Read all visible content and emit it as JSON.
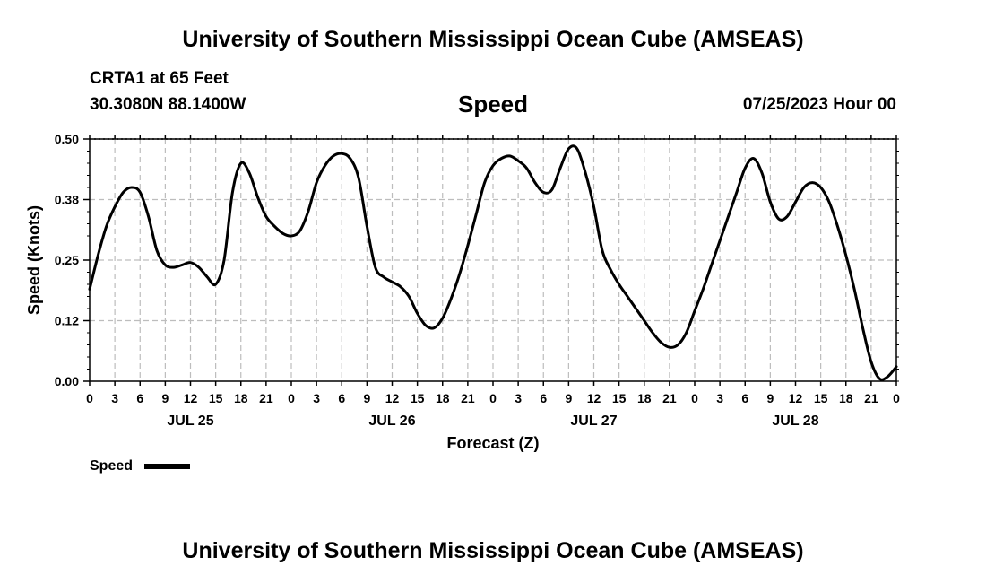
{
  "header": {
    "title": "University of Southern Mississippi Ocean Cube (AMSEAS)",
    "station": "CRTA1 at 65 Feet",
    "coords": "30.3080N  88.1400W",
    "variable": "Speed",
    "date": "07/25/2023 Hour 00"
  },
  "footer": {
    "title": "University of Southern Mississippi Ocean Cube (AMSEAS)"
  },
  "legend": {
    "label": "Speed"
  },
  "colors": {
    "line": "#000000",
    "grid": "#bdbdbd",
    "background": "#ffffff"
  },
  "chart_data": {
    "type": "line",
    "title": "Speed",
    "xlabel": "Forecast (Z)",
    "ylabel": "Speed (Knots)",
    "xlim": [
      0,
      96
    ],
    "ylim": [
      0,
      0.5
    ],
    "grid": true,
    "legend_position": "bottom-left",
    "y_ticks": [
      {
        "value": 0,
        "label": "0.00"
      },
      {
        "value": 0.125,
        "label": "0.12"
      },
      {
        "value": 0.25,
        "label": "0.25"
      },
      {
        "value": 0.375,
        "label": "0.38"
      },
      {
        "value": 0.5,
        "label": "0.50"
      }
    ],
    "x_ticks": [
      {
        "value": 0,
        "label": "0"
      },
      {
        "value": 3,
        "label": "3"
      },
      {
        "value": 6,
        "label": "6"
      },
      {
        "value": 9,
        "label": "9"
      },
      {
        "value": 12,
        "label": "12"
      },
      {
        "value": 15,
        "label": "15"
      },
      {
        "value": 18,
        "label": "18"
      },
      {
        "value": 21,
        "label": "21"
      },
      {
        "value": 24,
        "label": "0"
      },
      {
        "value": 27,
        "label": "3"
      },
      {
        "value": 30,
        "label": "6"
      },
      {
        "value": 33,
        "label": "9"
      },
      {
        "value": 36,
        "label": "12"
      },
      {
        "value": 39,
        "label": "15"
      },
      {
        "value": 42,
        "label": "18"
      },
      {
        "value": 45,
        "label": "21"
      },
      {
        "value": 48,
        "label": "0"
      },
      {
        "value": 51,
        "label": "3"
      },
      {
        "value": 54,
        "label": "6"
      },
      {
        "value": 57,
        "label": "9"
      },
      {
        "value": 60,
        "label": "12"
      },
      {
        "value": 63,
        "label": "15"
      },
      {
        "value": 66,
        "label": "18"
      },
      {
        "value": 69,
        "label": "21"
      },
      {
        "value": 72,
        "label": "0"
      },
      {
        "value": 75,
        "label": "3"
      },
      {
        "value": 78,
        "label": "6"
      },
      {
        "value": 81,
        "label": "9"
      },
      {
        "value": 84,
        "label": "12"
      },
      {
        "value": 87,
        "label": "15"
      },
      {
        "value": 90,
        "label": "18"
      },
      {
        "value": 93,
        "label": "21"
      },
      {
        "value": 96,
        "label": "0"
      }
    ],
    "day_labels": [
      {
        "value": 12,
        "label": "JUL 25"
      },
      {
        "value": 36,
        "label": "JUL 26"
      },
      {
        "value": 60,
        "label": "JUL 27"
      },
      {
        "value": 84,
        "label": "JUL 28"
      }
    ],
    "series": [
      {
        "name": "Speed",
        "x": [
          0,
          1,
          2,
          3,
          4,
          5,
          6,
          7,
          8,
          9,
          10,
          11,
          12,
          13,
          14,
          15,
          16,
          17,
          18,
          19,
          20,
          21,
          22,
          23,
          24,
          25,
          26,
          27,
          28,
          29,
          30,
          31,
          32,
          33,
          34,
          35,
          36,
          37,
          38,
          39,
          40,
          41,
          42,
          43,
          44,
          45,
          46,
          47,
          48,
          49,
          50,
          51,
          52,
          53,
          54,
          55,
          56,
          57,
          58,
          59,
          60,
          61,
          62,
          63,
          64,
          65,
          66,
          67,
          68,
          69,
          70,
          71,
          72,
          73,
          74,
          75,
          76,
          77,
          78,
          79,
          80,
          81,
          82,
          83,
          84,
          85,
          86,
          87,
          88,
          89,
          90,
          91,
          92,
          93,
          94,
          95,
          96
        ],
        "values": [
          0.19,
          0.26,
          0.32,
          0.36,
          0.39,
          0.4,
          0.39,
          0.34,
          0.27,
          0.24,
          0.235,
          0.24,
          0.245,
          0.235,
          0.215,
          0.2,
          0.25,
          0.39,
          0.45,
          0.43,
          0.38,
          0.34,
          0.32,
          0.305,
          0.3,
          0.31,
          0.35,
          0.41,
          0.445,
          0.465,
          0.47,
          0.46,
          0.42,
          0.32,
          0.235,
          0.215,
          0.205,
          0.195,
          0.175,
          0.14,
          0.115,
          0.11,
          0.13,
          0.17,
          0.22,
          0.28,
          0.345,
          0.41,
          0.445,
          0.46,
          0.465,
          0.455,
          0.44,
          0.41,
          0.39,
          0.395,
          0.44,
          0.48,
          0.48,
          0.43,
          0.36,
          0.27,
          0.23,
          0.2,
          0.175,
          0.15,
          0.125,
          0.1,
          0.08,
          0.07,
          0.075,
          0.1,
          0.145,
          0.19,
          0.24,
          0.29,
          0.34,
          0.39,
          0.44,
          0.46,
          0.43,
          0.37,
          0.335,
          0.34,
          0.37,
          0.4,
          0.41,
          0.4,
          0.37,
          0.32,
          0.26,
          0.19,
          0.11,
          0.04,
          0.005,
          0.01,
          0.03
        ]
      }
    ]
  }
}
